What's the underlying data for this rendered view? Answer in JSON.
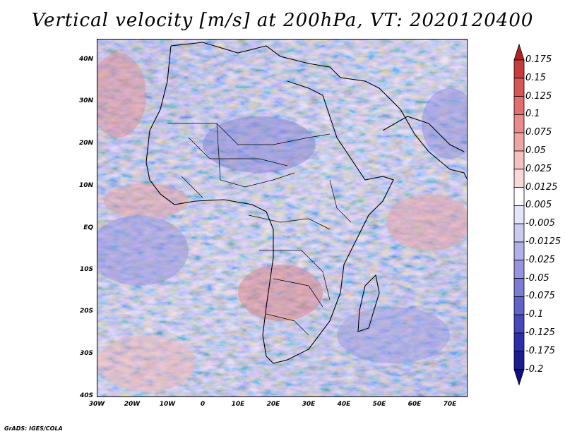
{
  "title": "Vertical velocity [m/s] at 200hPa, VT: 2020120400",
  "credit": "GrADS: IGES/COLA",
  "map": {
    "lat_labels": [
      "40N",
      "30N",
      "20N",
      "10N",
      "EQ",
      "10S",
      "20S",
      "30S",
      "40S"
    ],
    "lon_labels": [
      "30W",
      "20W",
      "10W",
      "0",
      "10E",
      "20E",
      "30E",
      "40E",
      "50E",
      "60E",
      "70E"
    ]
  },
  "colorbar": {
    "labels": [
      "0.175",
      "0.15",
      "0.125",
      "0.1",
      "0.075",
      "0.05",
      "0.025",
      "0.0125",
      "0.005",
      "-0.005",
      "-0.0125",
      "-0.025",
      "-0.05",
      "-0.075",
      "-0.1",
      "-0.125",
      "-0.175",
      "-0.2"
    ],
    "colors": [
      "#b22222",
      "#c93c3c",
      "#d85656",
      "#e26e6e",
      "#ea8a8a",
      "#f0a5a5",
      "#f5c0c0",
      "#f9d8d8",
      "#ffffff",
      "#e4e4fa",
      "#cacaf2",
      "#b0b0ea",
      "#9696e0",
      "#7c7cd6",
      "#6262ca",
      "#4848bd",
      "#2e2eaa",
      "#1c1c90",
      "#10107a"
    ]
  }
}
